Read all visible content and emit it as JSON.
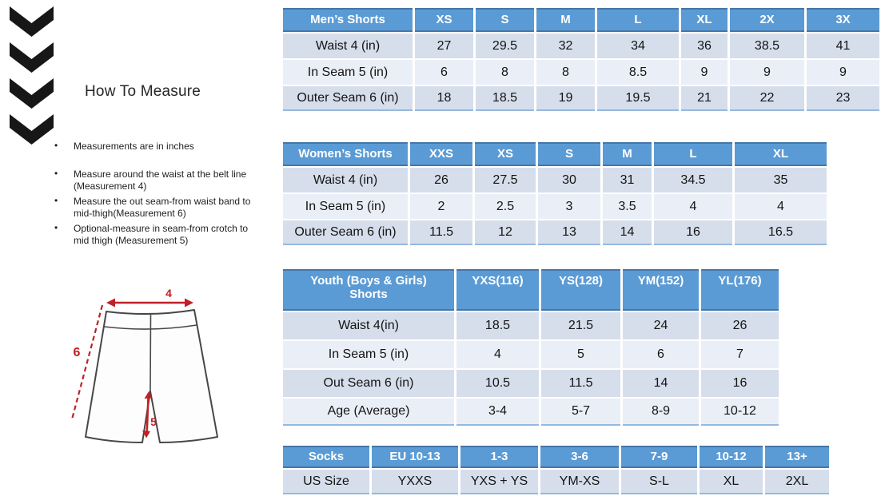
{
  "page": {
    "background": "#ffffff"
  },
  "logo": {
    "icon": "hummel-chevrons-down",
    "chevron_count": 4,
    "color": "#171717"
  },
  "how_to_measure": {
    "title": "How To Measure",
    "bullets": [
      "Measurements are in inches",
      "Measure around the waist at the belt line (Measurement 4)",
      "Measure the out seam-from waist band to mid-thigh(Measurement 6)",
      "Optional-measure in seam-from crotch to mid thigh (Measurement 5)"
    ]
  },
  "diagram": {
    "labels": {
      "waist": "4",
      "inseam": "5",
      "outseam": "6"
    },
    "accent_color": "#c02026",
    "outline_color": "#474747"
  },
  "colors": {
    "table_header_bg": "#5b9bd5",
    "table_header_text": "#ffffff",
    "table_header_border": "#4576a8",
    "row_band_dark": "#d6deeb",
    "row_band_light": "#eaeef6",
    "table_bottom_border": "#95b9dd",
    "logo_color": "#171717"
  },
  "tables": {
    "mens": {
      "title": "Men’s Shorts",
      "sizes": [
        "XS",
        "S",
        "M",
        "L",
        "XL",
        "2X",
        "3X"
      ],
      "rows": [
        {
          "label": "Waist 4 (in)",
          "values": [
            "27",
            "29.5",
            "32",
            "34",
            "36",
            "38.5",
            "41"
          ]
        },
        {
          "label": "In Seam 5 (in)",
          "values": [
            "6",
            "8",
            "8",
            "8.5",
            "9",
            "9",
            "9"
          ]
        },
        {
          "label": "Outer Seam 6 (in)",
          "values": [
            "18",
            "18.5",
            "19",
            "19.5",
            "21",
            "22",
            "23"
          ]
        }
      ]
    },
    "womens": {
      "title": "Women’s Shorts",
      "sizes": [
        "XXS",
        "XS",
        "S",
        "M",
        "L",
        "XL"
      ],
      "rows": [
        {
          "label": "Waist 4 (in)",
          "values": [
            "26",
            "27.5",
            "30",
            "31",
            "34.5",
            "35"
          ]
        },
        {
          "label": "In Seam 5 (in)",
          "values": [
            "2",
            "2.5",
            "3",
            "3.5",
            "4",
            "4"
          ]
        },
        {
          "label": "Outer Seam 6 (in)",
          "values": [
            "11.5",
            "12",
            "13",
            "14",
            "16",
            "16.5"
          ]
        }
      ]
    },
    "youth": {
      "title": "Youth (Boys & Girls) Shorts",
      "sizes": [
        "YXS(116)",
        "YS(128)",
        "YM(152)",
        "YL(176)"
      ],
      "rows": [
        {
          "label": "Waist 4(in)",
          "values": [
            "18.5",
            "21.5",
            "24",
            "26"
          ]
        },
        {
          "label": "In Seam 5 (in)",
          "values": [
            "4",
            "5",
            "6",
            "7"
          ]
        },
        {
          "label": "Out Seam 6 (in)",
          "values": [
            "10.5",
            "11.5",
            "14",
            "16"
          ]
        },
        {
          "label": "Age (Average)",
          "values": [
            "3-4",
            "5-7",
            "8-9",
            "10-12"
          ]
        }
      ]
    },
    "socks": {
      "title": "Socks",
      "sizes": [
        "EU 10-13",
        "1-3",
        "3-6",
        "7-9",
        "10-12",
        "13+"
      ],
      "rows": [
        {
          "label": "US Size",
          "values": [
            "YXXS",
            "YXS + YS",
            "YM-XS",
            "S-L",
            "XL",
            "2XL"
          ]
        }
      ]
    }
  }
}
